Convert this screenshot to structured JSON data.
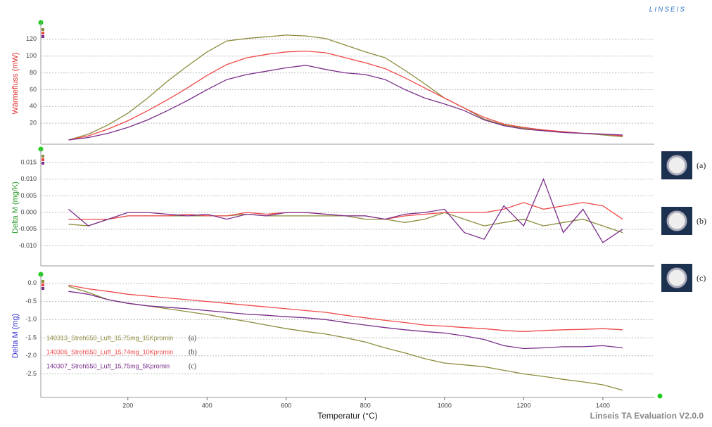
{
  "header": {
    "logo": "LINSEIS"
  },
  "footer": "Linseis TA Evaluation V2.0.0",
  "chart_data": [
    {
      "type": "line",
      "ylabel": "Wärmefluss (mW)",
      "ylabel_color": "#e03030",
      "grid": true,
      "x": [
        50,
        100,
        150,
        200,
        250,
        300,
        350,
        400,
        450,
        500,
        550,
        600,
        650,
        700,
        750,
        800,
        850,
        900,
        950,
        1000,
        1050,
        1100,
        1150,
        1200,
        1250,
        1300,
        1350,
        1400,
        1450
      ],
      "xlim": [
        -20,
        1530
      ],
      "ylim": [
        -5,
        140
      ],
      "yticks": [
        20,
        40,
        60,
        80,
        100,
        120
      ],
      "series": [
        {
          "name": "140313_Stroh550_Luft_15,75mg_15Kpromin",
          "tag": "(a)",
          "color": "#8c8c3c",
          "values": [
            0,
            7,
            18,
            32,
            50,
            70,
            88,
            105,
            118,
            121,
            123,
            125,
            124,
            121,
            113,
            105,
            98,
            83,
            67,
            50,
            38,
            25,
            18,
            14,
            11,
            9,
            8,
            6,
            4
          ]
        },
        {
          "name": "140306_Stroh550_Luft_15,74mg_10Kpromin",
          "tag": "(b)",
          "color": "#f04848",
          "values": [
            0,
            5,
            13,
            23,
            35,
            48,
            62,
            77,
            90,
            98,
            102,
            105,
            106,
            104,
            98,
            92,
            85,
            74,
            62,
            50,
            38,
            27,
            19,
            15,
            12,
            10,
            8,
            7,
            5
          ]
        },
        {
          "name": "140307_Stroh550_Luft_15,75mg_5Kpromin",
          "tag": "(c)",
          "color": "#7b2d8b",
          "values": [
            0,
            3,
            8,
            15,
            24,
            35,
            47,
            60,
            72,
            78,
            82,
            86,
            89,
            84,
            80,
            78,
            72,
            60,
            50,
            43,
            35,
            24,
            17,
            13,
            11,
            9,
            8,
            7,
            6
          ]
        }
      ]
    },
    {
      "type": "line",
      "ylabel": "Delta M (mg/K)",
      "ylabel_color": "#2a9a2a",
      "grid": true,
      "x": [
        50,
        100,
        150,
        200,
        250,
        300,
        350,
        400,
        450,
        500,
        550,
        600,
        650,
        700,
        750,
        800,
        850,
        900,
        950,
        1000,
        1050,
        1100,
        1150,
        1200,
        1250,
        1300,
        1350,
        1400,
        1450
      ],
      "xlim": [
        -20,
        1530
      ],
      "ylim": [
        -0.016,
        0.019
      ],
      "yticks": [
        {
          "value": -0.01,
          "label": "-0.010"
        },
        -0.005,
        {
          "value": 0,
          "label": "0.000"
        },
        0.005,
        {
          "value": 0.01,
          "label": "0.010"
        },
        0.015
      ],
      "series": [
        {
          "color": "#8c8c3c",
          "values": [
            -0.0035,
            -0.004,
            -0.002,
            -0.001,
            -0.001,
            -0.001,
            -0.001,
            -0.001,
            -0.001,
            -0.0005,
            -0.001,
            -0.001,
            -0.001,
            -0.001,
            -0.001,
            -0.002,
            -0.002,
            -0.003,
            -0.002,
            0,
            -0.002,
            -0.004,
            -0.003,
            -0.002,
            -0.004,
            -0.003,
            -0.002,
            -0.004,
            -0.006
          ]
        },
        {
          "color": "#f04848",
          "values": [
            -0.002,
            -0.002,
            -0.002,
            -0.001,
            -0.001,
            -0.001,
            -0.0005,
            -0.001,
            -0.001,
            0,
            -0.0005,
            0,
            0,
            -0.0005,
            -0.001,
            -0.001,
            -0.002,
            -0.001,
            -0.0005,
            0,
            0,
            0,
            0.001,
            0.003,
            0.001,
            0.002,
            0.003,
            0.002,
            -0.002
          ]
        },
        {
          "color": "#7b2d8b",
          "values": [
            0.001,
            -0.004,
            -0.002,
            0,
            0,
            -0.0005,
            -0.001,
            -0.0005,
            -0.002,
            -0.0005,
            -0.001,
            0,
            0,
            -0.0005,
            -0.001,
            -0.001,
            -0.002,
            -0.0005,
            0,
            0.001,
            -0.006,
            -0.008,
            0.002,
            -0.004,
            0.01,
            -0.006,
            0.001,
            -0.009,
            -0.005
          ]
        }
      ]
    },
    {
      "type": "line",
      "ylabel": "Delta M (mg)",
      "ylabel_color": "#3030d0",
      "xlabel": "Temperatur (°C)",
      "grid": true,
      "x": [
        50,
        100,
        150,
        200,
        250,
        300,
        350,
        400,
        450,
        500,
        550,
        600,
        650,
        700,
        750,
        800,
        850,
        900,
        950,
        1000,
        1050,
        1100,
        1150,
        1200,
        1250,
        1300,
        1350,
        1400,
        1450
      ],
      "xlim": [
        -20,
        1530
      ],
      "ylim": [
        -3.15,
        0.25
      ],
      "xticks": [
        200,
        400,
        600,
        800,
        1000,
        1200,
        1400
      ],
      "yticks": [
        {
          "value": -2.5,
          "label": "-2.5"
        },
        {
          "value": -2,
          "label": "-2.0"
        },
        -1.5,
        {
          "value": -1,
          "label": "-1.0"
        },
        -0.5,
        {
          "value": 0,
          "label": "0.0"
        }
      ],
      "series": [
        {
          "color": "#8c8c3c",
          "values": [
            -0.08,
            -0.25,
            -0.45,
            -0.55,
            -0.62,
            -0.7,
            -0.78,
            -0.86,
            -0.96,
            -1.05,
            -1.15,
            -1.25,
            -1.33,
            -1.4,
            -1.5,
            -1.62,
            -1.78,
            -1.92,
            -2.08,
            -2.2,
            -2.25,
            -2.3,
            -2.4,
            -2.5,
            -2.57,
            -2.65,
            -2.72,
            -2.8,
            -2.95
          ]
        },
        {
          "color": "#f04848",
          "values": [
            -0.05,
            -0.15,
            -0.22,
            -0.3,
            -0.35,
            -0.4,
            -0.45,
            -0.5,
            -0.55,
            -0.6,
            -0.65,
            -0.7,
            -0.75,
            -0.8,
            -0.88,
            -0.95,
            -1.02,
            -1.08,
            -1.15,
            -1.18,
            -1.22,
            -1.25,
            -1.3,
            -1.33,
            -1.3,
            -1.28,
            -1.27,
            -1.25,
            -1.28
          ]
        },
        {
          "color": "#7b2d8b",
          "values": [
            -0.22,
            -0.3,
            -0.45,
            -0.55,
            -0.62,
            -0.66,
            -0.7,
            -0.75,
            -0.8,
            -0.85,
            -0.88,
            -0.92,
            -0.95,
            -1.0,
            -1.08,
            -1.15,
            -1.22,
            -1.28,
            -1.33,
            -1.37,
            -1.45,
            -1.55,
            -1.72,
            -1.8,
            -1.78,
            -1.75,
            -1.75,
            -1.72,
            -1.78
          ]
        }
      ]
    }
  ]
}
